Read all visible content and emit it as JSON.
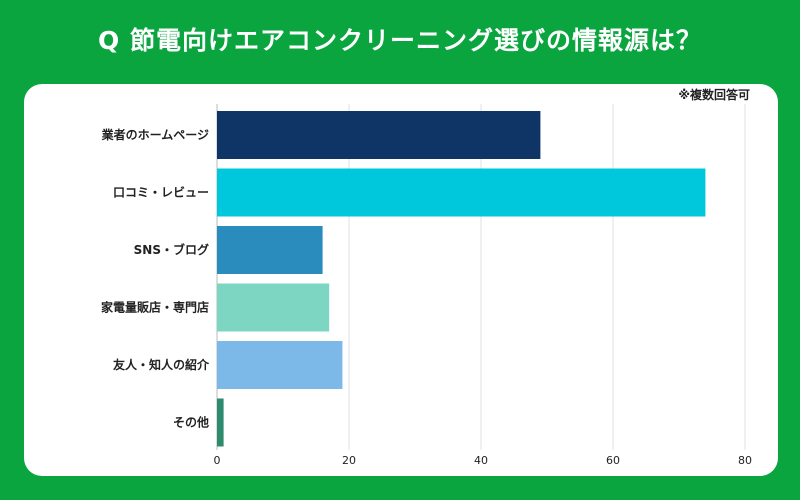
{
  "title": "Q 節電向けエアコンクリーニング選びの情報源は？",
  "note": "※複数回答可",
  "chart_data": {
    "type": "bar",
    "orientation": "horizontal",
    "title": "Q 節電向けエアコンクリーニング選びの情報源は？",
    "categories": [
      "業者のホームページ",
      "口コミ・レビュー",
      "SNS・ブログ",
      "家電量販店・専門店",
      "友人・知人の紹介",
      "その他"
    ],
    "values": [
      49,
      74,
      16,
      17,
      19,
      1
    ],
    "colors": [
      "#0e3566",
      "#00c8dc",
      "#2a8bbd",
      "#7dd6c1",
      "#7db9e8",
      "#2e8b6e"
    ],
    "xlim": [
      0,
      80
    ],
    "xticks": [
      0,
      20,
      40,
      60,
      80
    ],
    "xlabel": "",
    "ylabel": "",
    "grid": true
  }
}
